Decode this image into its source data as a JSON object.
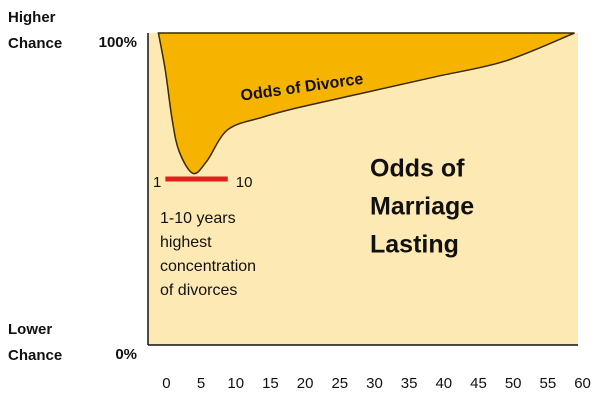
{
  "chart_data": {
    "type": "area",
    "x": [
      0,
      1,
      2,
      3,
      5,
      7,
      10,
      15,
      20,
      30,
      40,
      50,
      60
    ],
    "series": [
      {
        "name": "Odds of Divorce",
        "color": "#f6b300",
        "values": [
          100,
          88,
          72,
          62,
          55,
          59,
          69,
          73,
          76,
          81,
          86,
          91,
          100
        ]
      }
    ],
    "below_color": "#fde9b4",
    "below_label": [
      "Odds of",
      "Marriage",
      "Lasting"
    ],
    "xlim": [
      -1.5,
      60.5
    ],
    "xticks": [
      0,
      5,
      10,
      15,
      20,
      25,
      30,
      35,
      40,
      45,
      50,
      55,
      60
    ],
    "ylim": [
      0,
      100
    ],
    "yticks": [
      {
        "value": 0,
        "label": "0%"
      },
      {
        "value": 100,
        "label": "100%"
      }
    ],
    "y_descriptions": [
      [
        "Lower",
        "Chance"
      ],
      [
        "Higher",
        "Chance"
      ]
    ],
    "highlight_range": [
      1,
      10
    ],
    "highlight_color": "#e0201b",
    "highlight_note": [
      "1-10 years",
      "highest",
      "concentration",
      "of divorces"
    ]
  }
}
